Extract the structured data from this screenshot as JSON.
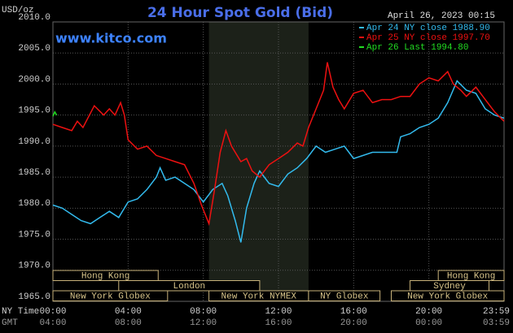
{
  "chart_data": {
    "type": "line",
    "title": "24 Hour Spot Gold (Bid)",
    "unit_label": "USD/oz",
    "timestamp": "April 26, 2023 00:15",
    "watermark": "www.kitco.com",
    "x_axis_label": "NY Time",
    "x2_axis_label": "GMT",
    "xlim": [
      0,
      24
    ],
    "ylim": [
      1965,
      2010
    ],
    "xticks": [
      {
        "value": 0,
        "label": "00:00"
      },
      {
        "value": 4,
        "label": "04:00"
      },
      {
        "value": 8,
        "label": "08:00"
      },
      {
        "value": 12,
        "label": "12:00"
      },
      {
        "value": 16,
        "label": "16:00"
      },
      {
        "value": 20,
        "label": "20:00"
      },
      {
        "value": 24,
        "label": "23:59"
      }
    ],
    "xticks_gmt": [
      "04:00",
      "08:00",
      "12:00",
      "16:00",
      "20:00",
      "00:00",
      "03:59"
    ],
    "yticks": [
      {
        "value": 1965,
        "label": "1965.0"
      },
      {
        "value": 1970,
        "label": "1970.0"
      },
      {
        "value": 1975,
        "label": "1975.0"
      },
      {
        "value": 1980,
        "label": "1980.0"
      },
      {
        "value": 1985,
        "label": "1985.0"
      },
      {
        "value": 1990,
        "label": "1990.0"
      },
      {
        "value": 1995,
        "label": "1995.0"
      },
      {
        "value": 2000,
        "label": "2000.0"
      },
      {
        "value": 2005,
        "label": "2005.0"
      },
      {
        "value": 2010,
        "label": "2010.0"
      }
    ],
    "grid": true,
    "shade": {
      "start": 8.3,
      "end": 13.6,
      "color": "#1c2119"
    },
    "sessions": [
      {
        "name": "Hong Kong",
        "start": 0,
        "end": 5.6,
        "row": 0
      },
      {
        "name": "Hong Kong",
        "start": 20.5,
        "end": 24,
        "row": 0
      },
      {
        "name": "London",
        "start": 3.5,
        "end": 11,
        "row": 1
      },
      {
        "name": "Sydney",
        "start": 19,
        "end": 23.2,
        "row": 1
      },
      {
        "name": "New York Globex",
        "start": 0,
        "end": 6.1,
        "row": 2
      },
      {
        "name": "New York NYMEX",
        "start": 8.3,
        "end": 13.6,
        "row": 2
      },
      {
        "name": "NY Globex",
        "start": 13.6,
        "end": 17.4,
        "row": 2
      },
      {
        "name": "New York Globex",
        "start": 18,
        "end": 24,
        "row": 2
      }
    ],
    "series": [
      {
        "name": "Apr 24 NY close 1988.90",
        "color": "#33bbee",
        "x": [
          0,
          0.5,
          1,
          1.5,
          2,
          2.5,
          3,
          3.5,
          4,
          4.5,
          5,
          5.5,
          5.7,
          6,
          6.5,
          7,
          7.5,
          8,
          8.5,
          9,
          9.3,
          9.7,
          10,
          10.3,
          10.7,
          11,
          11.5,
          12,
          12.5,
          13,
          13.5,
          14,
          14.5,
          15,
          15.5,
          16,
          16.5,
          17,
          17.5,
          18,
          18.3,
          18.5,
          19,
          19.5,
          20,
          20.5,
          21,
          21.5,
          22,
          22.5,
          23,
          23.5,
          24
        ],
        "values": [
          1980.5,
          1980,
          1979,
          1978,
          1977.5,
          1978.5,
          1979.5,
          1978.5,
          1981,
          1981.5,
          1983,
          1985,
          1986.5,
          1984.5,
          1985,
          1984,
          1983,
          1981,
          1983,
          1984,
          1982,
          1978,
          1974.5,
          1980,
          1984,
          1986,
          1984,
          1983.5,
          1985.5,
          1986.5,
          1988,
          1990,
          1989,
          1989.5,
          1990,
          1988,
          1988.5,
          1989,
          1989,
          1989,
          1989,
          1991.5,
          1992,
          1993,
          1993.5,
          1994.5,
          1997,
          2000.5,
          1999,
          1998.5,
          1996,
          1995,
          1994.5
        ]
      },
      {
        "name": "Apr 25 NY close 1997.70",
        "color": "#ee1111",
        "x": [
          0,
          0.5,
          1,
          1.3,
          1.6,
          2.2,
          2.7,
          3,
          3.3,
          3.6,
          3.8,
          4,
          4.5,
          5,
          5.5,
          6,
          6.5,
          7,
          7.5,
          7.9,
          8.3,
          8.6,
          8.9,
          9.2,
          9.5,
          10,
          10.3,
          10.6,
          11,
          11.5,
          12,
          12.5,
          13,
          13.3,
          13.6,
          14,
          14.4,
          14.6,
          14.9,
          15.2,
          15.5,
          16,
          16.5,
          17,
          17.5,
          18,
          18.5,
          19,
          19.5,
          20,
          20.5,
          21,
          21.3,
          21.7,
          22,
          22.5,
          23,
          23.5,
          24
        ],
        "values": [
          1993.5,
          1993,
          1992.5,
          1994,
          1993,
          1996.5,
          1995,
          1996,
          1995,
          1997,
          1995,
          1991,
          1989.5,
          1990,
          1988.5,
          1988,
          1987.5,
          1987,
          1984,
          1980.5,
          1977.5,
          1983,
          1989,
          1992.5,
          1990,
          1987.5,
          1988,
          1986,
          1985,
          1987,
          1988,
          1989,
          1990.5,
          1990,
          1993,
          1996,
          1999,
          2003.5,
          1999.5,
          1997.5,
          1996,
          1998.5,
          1999,
          1997,
          1997.5,
          1997.5,
          1998,
          1998,
          2000,
          2001,
          2000.5,
          2002,
          2000,
          1999,
          1998,
          1999.5,
          1997.5,
          1995.5,
          1994
        ]
      },
      {
        "name": "Apr 26 Last 1994.80",
        "color": "#22dd22",
        "x": [
          0,
          0.1,
          0.2
        ],
        "values": [
          1994.8,
          1995.5,
          1995
        ]
      }
    ]
  }
}
